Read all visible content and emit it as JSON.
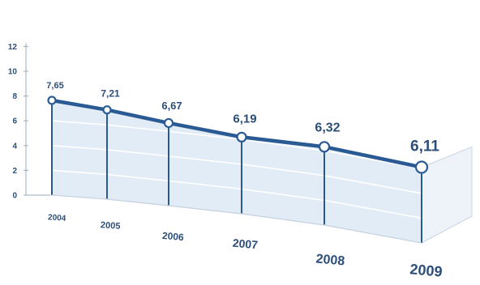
{
  "chart_data": {
    "type": "area",
    "categories": [
      "2004",
      "2005",
      "2006",
      "2007",
      "2008",
      "2009"
    ],
    "values": [
      7.65,
      7.21,
      6.67,
      6.19,
      6.32,
      6.11
    ],
    "data_labels": [
      "7,65",
      "7,21",
      "6,67",
      "6,19",
      "6,32",
      "6,11"
    ],
    "y_ticks": [
      "0",
      "2",
      "4",
      "6",
      "8",
      "10",
      "12"
    ],
    "ylim": [
      0,
      12
    ],
    "grid": true,
    "style": "3d-perspective",
    "colors": {
      "line": "#2a5a94",
      "fill": "#e2ecf6",
      "side": "#eef3f9",
      "axis": "#9aaabd",
      "text": "#2c4e78"
    }
  }
}
